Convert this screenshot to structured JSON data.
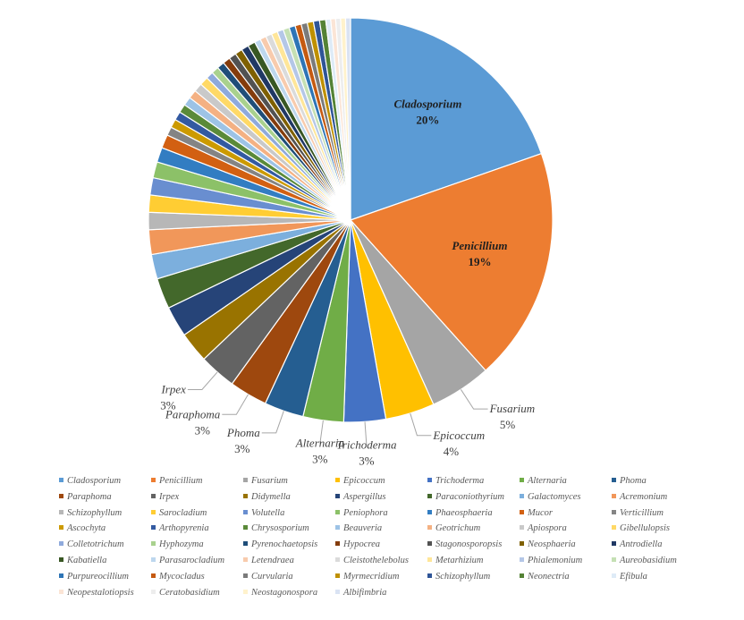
{
  "chart_data": {
    "type": "pie",
    "title": "",
    "slices": [
      {
        "label": "Cladosporium",
        "value": 20,
        "display": "20%",
        "color": "#5b9bd5"
      },
      {
        "label": "Penicillium",
        "value": 19,
        "display": "19%",
        "color": "#ed7d31"
      },
      {
        "label": "Fusarium",
        "value": 5,
        "display": "5%",
        "color": "#a5a5a5"
      },
      {
        "label": "Epicoccum",
        "value": 4,
        "display": "4%",
        "color": "#ffc000"
      },
      {
        "label": "Trichoderma",
        "value": 3.4,
        "display": "3%",
        "color": "#4472c4"
      },
      {
        "label": "Alternaria",
        "value": 3.3,
        "display": "3%",
        "color": "#70ad47"
      },
      {
        "label": "Phoma",
        "value": 3.2,
        "display": "3%",
        "color": "#255e91"
      },
      {
        "label": "Paraphoma",
        "value": 3.1,
        "display": "3%",
        "color": "#9e480e"
      },
      {
        "label": "Irpex",
        "value": 3.0,
        "display": "3%",
        "color": "#636363"
      },
      {
        "label": "Didymella",
        "value": 2.5,
        "display": "",
        "color": "#997300"
      },
      {
        "label": "Aspergillus",
        "value": 2.5,
        "display": "",
        "color": "#264478"
      },
      {
        "label": "Paraconiothyrium",
        "value": 2.5,
        "display": "",
        "color": "#43682b"
      },
      {
        "label": "Galactomyces",
        "value": 2.0,
        "display": "",
        "color": "#7cafdd"
      },
      {
        "label": "Acremonium",
        "value": 2.0,
        "display": "",
        "color": "#f1975a"
      },
      {
        "label": "Schizophyllum",
        "value": 1.4,
        "display": "",
        "color": "#b7b7b7"
      },
      {
        "label": "Sarocladium",
        "value": 1.4,
        "display": "",
        "color": "#ffcd33"
      },
      {
        "label": "Volutella",
        "value": 1.4,
        "display": "",
        "color": "#698ed0"
      },
      {
        "label": "Peniophora",
        "value": 1.3,
        "display": "",
        "color": "#8cc168"
      },
      {
        "label": "Phaeosphaeria",
        "value": 1.2,
        "display": "",
        "color": "#327dc2"
      },
      {
        "label": "Mucor",
        "value": 1.1,
        "display": "",
        "color": "#d26012"
      },
      {
        "label": "Verticillium",
        "value": 0.7,
        "display": "",
        "color": "#848484"
      },
      {
        "label": "Ascochyta",
        "value": 0.7,
        "display": "",
        "color": "#cc9a00"
      },
      {
        "label": "Arthopyrenia",
        "value": 0.7,
        "display": "",
        "color": "#335aa1"
      },
      {
        "label": "Chrysosporium",
        "value": 0.7,
        "display": "",
        "color": "#5a8a39"
      },
      {
        "label": "Beauveria",
        "value": 0.7,
        "display": "",
        "color": "#9dc3e6"
      },
      {
        "label": "Geotrichum",
        "value": 0.7,
        "display": "",
        "color": "#f4b183"
      },
      {
        "label": "Apiospora",
        "value": 0.7,
        "display": "",
        "color": "#c9c9c9"
      },
      {
        "label": "Gibellulopsis",
        "value": 0.7,
        "display": "",
        "color": "#ffd966"
      },
      {
        "label": "Colletotrichum",
        "value": 0.6,
        "display": "",
        "color": "#8faadc"
      },
      {
        "label": "Hyphozyma",
        "value": 0.6,
        "display": "",
        "color": "#a9d18e"
      },
      {
        "label": "Pyrenochaetopsis",
        "value": 0.6,
        "display": "",
        "color": "#1f4e79"
      },
      {
        "label": "Hypocrea",
        "value": 0.6,
        "display": "",
        "color": "#843c0c"
      },
      {
        "label": "Stagonosporopsis",
        "value": 0.6,
        "display": "",
        "color": "#525252"
      },
      {
        "label": "Neosphaeria",
        "value": 0.6,
        "display": "",
        "color": "#7f6000"
      },
      {
        "label": "Antrodiella",
        "value": 0.6,
        "display": "",
        "color": "#203864"
      },
      {
        "label": "Kabatiella",
        "value": 0.6,
        "display": "",
        "color": "#385723"
      },
      {
        "label": "Parasarocladium",
        "value": 0.5,
        "display": "",
        "color": "#bdd7ee"
      },
      {
        "label": "Letendraea",
        "value": 0.5,
        "display": "",
        "color": "#f8cbad"
      },
      {
        "label": "Cleistothelebolus",
        "value": 0.5,
        "display": "",
        "color": "#dbdbdb"
      },
      {
        "label": "Metarhizium",
        "value": 0.5,
        "display": "",
        "color": "#ffe699"
      },
      {
        "label": "Phialemonium",
        "value": 0.5,
        "display": "",
        "color": "#b4c7e7"
      },
      {
        "label": "Aureobasidium",
        "value": 0.5,
        "display": "",
        "color": "#c5e0b4"
      },
      {
        "label": "Purpureocillium",
        "value": 0.5,
        "display": "",
        "color": "#2e75b6"
      },
      {
        "label": "Mycocladus",
        "value": 0.5,
        "display": "",
        "color": "#c55a11"
      },
      {
        "label": "Curvularia",
        "value": 0.5,
        "display": "",
        "color": "#7b7b7b"
      },
      {
        "label": "Myrmecridium",
        "value": 0.5,
        "display": "",
        "color": "#bf9000"
      },
      {
        "label": "Schizophyllum",
        "value": 0.5,
        "display": "",
        "color": "#2f5597"
      },
      {
        "label": "Neonectria",
        "value": 0.5,
        "display": "",
        "color": "#548235"
      },
      {
        "label": "Efibula",
        "value": 0.4,
        "display": "",
        "color": "#deebf7"
      },
      {
        "label": "Neopestalotiopsis",
        "value": 0.4,
        "display": "",
        "color": "#fbe5d6"
      },
      {
        "label": "Ceratobasidium",
        "value": 0.4,
        "display": "",
        "color": "#ededed"
      },
      {
        "label": "Neostagonospora",
        "value": 0.4,
        "display": "",
        "color": "#fff2cc"
      },
      {
        "label": "Albifimbria",
        "value": 0.4,
        "display": "",
        "color": "#dae3f3"
      }
    ],
    "inside_labels": [
      0,
      1
    ],
    "outside_labels": [
      2,
      3,
      4,
      5,
      6,
      7,
      8
    ],
    "legend_placement": "bottom",
    "legend_columns": 7
  }
}
